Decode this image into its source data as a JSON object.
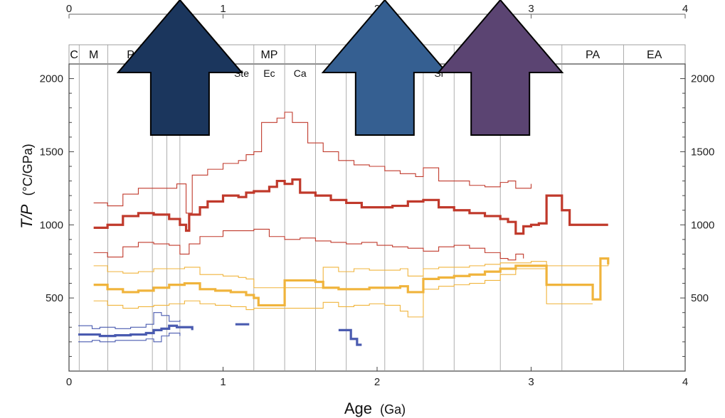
{
  "chart_data": {
    "type": "line",
    "xlabel": "Age",
    "xlabel_unit": "(Ga)",
    "ylabel": "T/P",
    "ylabel_unit": "(°C/GPa)",
    "xlim": [
      0,
      4
    ],
    "ylim": [
      0,
      2100
    ],
    "x_ticks": [
      0,
      1,
      2,
      3,
      4
    ],
    "y_ticks": [
      500,
      1000,
      1500,
      2000
    ],
    "grid": "vertical lines at geologic boundaries",
    "boundaries": [
      0.066,
      0.252,
      0.541,
      0.635,
      0.72,
      1.2,
      1.4,
      1.6,
      1.8,
      2.05,
      2.3,
      2.5,
      2.8,
      3.2,
      3.6
    ],
    "eras": [
      {
        "label": "C",
        "x": 0.033
      },
      {
        "label": "M",
        "x": 0.16
      },
      {
        "label": "P",
        "x": 0.4
      },
      {
        "label": "MP",
        "x": 1.3
      },
      {
        "label": "PA",
        "x": 3.4
      },
      {
        "label": "EA",
        "x": 3.8
      }
    ],
    "periods": [
      {
        "label": "Ste",
        "x": 1.12
      },
      {
        "label": "Ec",
        "x": 1.3
      },
      {
        "label": "Ca",
        "x": 1.5
      },
      {
        "label": "Si",
        "x": 2.4
      }
    ],
    "series": [
      {
        "color": "#c0392b",
        "width": 3.2,
        "points": [
          [
            0.16,
            980
          ],
          [
            0.25,
            1000
          ],
          [
            0.35,
            1060
          ],
          [
            0.45,
            1080
          ],
          [
            0.55,
            1070
          ],
          [
            0.65,
            1040
          ],
          [
            0.72,
            1000
          ],
          [
            0.76,
            960
          ],
          [
            0.78,
            1070
          ],
          [
            0.85,
            1120
          ],
          [
            0.9,
            1160
          ],
          [
            1.0,
            1200
          ],
          [
            1.1,
            1190
          ],
          [
            1.15,
            1220
          ],
          [
            1.2,
            1230
          ],
          [
            1.3,
            1260
          ],
          [
            1.35,
            1300
          ],
          [
            1.4,
            1280
          ],
          [
            1.45,
            1310
          ],
          [
            1.5,
            1220
          ],
          [
            1.6,
            1200
          ],
          [
            1.7,
            1170
          ],
          [
            1.8,
            1150
          ],
          [
            1.9,
            1120
          ],
          [
            2.0,
            1120
          ],
          [
            2.1,
            1130
          ],
          [
            2.2,
            1160
          ],
          [
            2.3,
            1170
          ],
          [
            2.4,
            1120
          ],
          [
            2.5,
            1100
          ],
          [
            2.6,
            1080
          ],
          [
            2.7,
            1060
          ],
          [
            2.8,
            1040
          ],
          [
            2.85,
            1020
          ],
          [
            2.9,
            940
          ],
          [
            2.95,
            990
          ],
          [
            3.0,
            1000
          ],
          [
            3.05,
            1010
          ],
          [
            3.1,
            1200
          ],
          [
            3.2,
            1100
          ],
          [
            3.25,
            1000
          ],
          [
            3.5,
            1000
          ]
        ]
      },
      {
        "color": "#c0392b",
        "width": 1.1,
        "points": [
          [
            0.16,
            1150
          ],
          [
            0.25,
            1130
          ],
          [
            0.35,
            1210
          ],
          [
            0.45,
            1250
          ],
          [
            0.55,
            1250
          ],
          [
            0.7,
            1280
          ],
          [
            0.76,
            1080
          ],
          [
            0.8,
            1340
          ],
          [
            0.9,
            1380
          ],
          [
            1.0,
            1420
          ],
          [
            1.1,
            1440
          ],
          [
            1.15,
            1480
          ],
          [
            1.2,
            1500
          ],
          [
            1.25,
            1700
          ],
          [
            1.35,
            1730
          ],
          [
            1.4,
            1770
          ],
          [
            1.45,
            1700
          ],
          [
            1.55,
            1560
          ],
          [
            1.65,
            1500
          ],
          [
            1.75,
            1440
          ],
          [
            1.85,
            1410
          ],
          [
            1.95,
            1400
          ],
          [
            2.05,
            1370
          ],
          [
            2.15,
            1350
          ],
          [
            2.25,
            1330
          ],
          [
            2.3,
            1390
          ],
          [
            2.4,
            1300
          ],
          [
            2.5,
            1300
          ],
          [
            2.6,
            1270
          ],
          [
            2.7,
            1260
          ],
          [
            2.8,
            1290
          ],
          [
            2.85,
            1300
          ],
          [
            2.9,
            1250
          ],
          [
            3.0,
            1280
          ]
        ]
      },
      {
        "color": "#c0392b",
        "width": 1.1,
        "points": [
          [
            0.16,
            810
          ],
          [
            0.25,
            780
          ],
          [
            0.35,
            850
          ],
          [
            0.45,
            880
          ],
          [
            0.55,
            870
          ],
          [
            0.65,
            860
          ],
          [
            0.72,
            800
          ],
          [
            0.78,
            870
          ],
          [
            0.85,
            920
          ],
          [
            1.0,
            960
          ],
          [
            1.1,
            960
          ],
          [
            1.2,
            970
          ],
          [
            1.3,
            920
          ],
          [
            1.4,
            900
          ],
          [
            1.5,
            910
          ],
          [
            1.6,
            890
          ],
          [
            1.7,
            880
          ],
          [
            1.8,
            870
          ],
          [
            1.9,
            880
          ],
          [
            2.0,
            860
          ],
          [
            2.1,
            850
          ],
          [
            2.2,
            840
          ],
          [
            2.3,
            820
          ],
          [
            2.4,
            850
          ],
          [
            2.5,
            860
          ],
          [
            2.6,
            840
          ],
          [
            2.7,
            810
          ],
          [
            2.8,
            770
          ],
          [
            2.85,
            760
          ],
          [
            2.9,
            800
          ],
          [
            2.95,
            770
          ]
        ]
      },
      {
        "color": "#f0b43c",
        "width": 3.2,
        "points": [
          [
            0.16,
            590
          ],
          [
            0.25,
            560
          ],
          [
            0.35,
            540
          ],
          [
            0.45,
            550
          ],
          [
            0.55,
            570
          ],
          [
            0.65,
            590
          ],
          [
            0.75,
            600
          ],
          [
            0.85,
            560
          ],
          [
            0.95,
            550
          ],
          [
            1.05,
            540
          ],
          [
            1.15,
            520
          ],
          [
            1.2,
            500
          ],
          [
            1.23,
            450
          ],
          [
            1.4,
            620
          ],
          [
            1.6,
            610
          ],
          [
            1.65,
            570
          ],
          [
            1.75,
            560
          ],
          [
            1.85,
            560
          ],
          [
            1.95,
            570
          ],
          [
            2.05,
            570
          ],
          [
            2.15,
            580
          ],
          [
            2.2,
            540
          ],
          [
            2.3,
            630
          ],
          [
            2.4,
            640
          ],
          [
            2.5,
            650
          ],
          [
            2.6,
            660
          ],
          [
            2.7,
            680
          ],
          [
            2.8,
            700
          ],
          [
            2.9,
            720
          ],
          [
            3.0,
            720
          ],
          [
            3.1,
            590
          ],
          [
            3.3,
            590
          ],
          [
            3.4,
            490
          ],
          [
            3.45,
            770
          ],
          [
            3.5,
            730
          ]
        ]
      },
      {
        "color": "#f0b43c",
        "width": 1.1,
        "points": [
          [
            0.16,
            720
          ],
          [
            0.25,
            680
          ],
          [
            0.35,
            670
          ],
          [
            0.45,
            680
          ],
          [
            0.55,
            700
          ],
          [
            0.65,
            700
          ],
          [
            0.75,
            710
          ],
          [
            0.85,
            660
          ],
          [
            1.0,
            650
          ],
          [
            1.1,
            640
          ],
          [
            1.15,
            630
          ],
          [
            1.2,
            570
          ],
          [
            1.65,
            710
          ],
          [
            1.75,
            680
          ],
          [
            1.85,
            700
          ],
          [
            1.95,
            690
          ],
          [
            2.05,
            690
          ],
          [
            2.15,
            700
          ],
          [
            2.2,
            650
          ],
          [
            2.3,
            700
          ],
          [
            2.4,
            710
          ],
          [
            2.5,
            710
          ],
          [
            2.6,
            720
          ],
          [
            2.7,
            730
          ],
          [
            2.8,
            740
          ],
          [
            2.9,
            740
          ],
          [
            3.0,
            750
          ],
          [
            3.1,
            720
          ],
          [
            3.3,
            720
          ],
          [
            3.5,
            740
          ]
        ]
      },
      {
        "color": "#f0b43c",
        "width": 1.1,
        "points": [
          [
            0.16,
            480
          ],
          [
            0.25,
            450
          ],
          [
            0.35,
            430
          ],
          [
            0.45,
            440
          ],
          [
            0.55,
            450
          ],
          [
            0.65,
            460
          ],
          [
            0.75,
            480
          ],
          [
            0.85,
            460
          ],
          [
            0.95,
            450
          ],
          [
            1.05,
            440
          ],
          [
            1.15,
            420
          ],
          [
            1.2,
            430
          ],
          [
            1.65,
            470
          ],
          [
            1.75,
            440
          ],
          [
            1.85,
            450
          ],
          [
            1.95,
            460
          ],
          [
            2.05,
            450
          ],
          [
            2.15,
            410
          ],
          [
            2.2,
            370
          ],
          [
            2.3,
            560
          ],
          [
            2.4,
            580
          ],
          [
            2.5,
            590
          ],
          [
            2.6,
            600
          ],
          [
            2.7,
            620
          ],
          [
            2.8,
            660
          ],
          [
            2.9,
            700
          ],
          [
            3.0,
            700
          ],
          [
            3.1,
            460
          ],
          [
            3.3,
            460
          ],
          [
            3.4,
            460
          ]
        ]
      },
      {
        "color": "#4a5bb0",
        "width": 3.2,
        "points": [
          [
            0.06,
            250
          ],
          [
            0.15,
            250
          ],
          [
            0.2,
            240
          ],
          [
            0.3,
            245
          ],
          [
            0.4,
            250
          ],
          [
            0.5,
            260
          ],
          [
            0.55,
            280
          ],
          [
            0.6,
            290
          ],
          [
            0.65,
            310
          ],
          [
            0.7,
            300
          ],
          [
            0.8,
            280
          ]
        ]
      },
      {
        "color": "#4a5bb0",
        "width": 1.1,
        "points": [
          [
            0.06,
            310
          ],
          [
            0.15,
            290
          ],
          [
            0.2,
            300
          ],
          [
            0.3,
            290
          ],
          [
            0.4,
            300
          ],
          [
            0.5,
            320
          ],
          [
            0.55,
            400
          ],
          [
            0.6,
            380
          ],
          [
            0.65,
            340
          ],
          [
            0.72,
            350
          ]
        ]
      },
      {
        "color": "#4a5bb0",
        "width": 1.1,
        "points": [
          [
            0.06,
            200
          ],
          [
            0.15,
            210
          ],
          [
            0.2,
            200
          ],
          [
            0.3,
            210
          ],
          [
            0.4,
            210
          ],
          [
            0.5,
            220
          ],
          [
            0.55,
            200
          ],
          [
            0.6,
            240
          ],
          [
            0.65,
            260
          ],
          [
            0.72,
            240
          ]
        ]
      },
      {
        "color": "#4a5bb0",
        "width": 3.2,
        "points": [
          [
            1.08,
            320
          ],
          [
            1.17,
            320
          ]
        ]
      },
      {
        "color": "#4a5bb0",
        "width": 3.2,
        "points": [
          [
            1.75,
            280
          ],
          [
            1.83,
            280
          ],
          [
            1.83,
            220
          ],
          [
            1.87,
            220
          ],
          [
            1.87,
            180
          ],
          [
            1.9,
            180
          ]
        ]
      }
    ],
    "arrows": [
      {
        "x": 0.72,
        "color": "#1b365d"
      },
      {
        "x": 2.05,
        "color": "#355f91"
      },
      {
        "x": 2.8,
        "color": "#5b4472"
      }
    ]
  }
}
